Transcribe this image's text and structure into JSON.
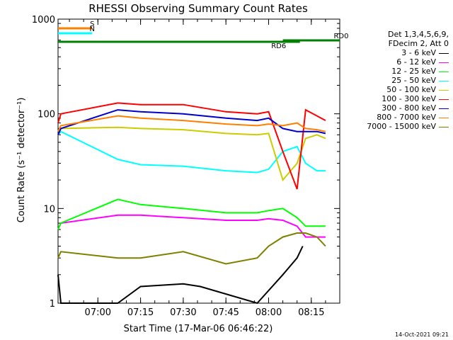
{
  "chart_data": {
    "type": "line",
    "title": "RHESSI Observing Summary Count Rates",
    "xlabel": "Start Time (17-Mar-06 06:46:22)",
    "ylabel": "Count Rate (s⁻¹ detector⁻¹)",
    "yscale": "log",
    "ylim": [
      1,
      1000
    ],
    "y_ticks": [
      "1",
      "10",
      "100",
      "1000"
    ],
    "xlim": [
      "06:46",
      "08:25"
    ],
    "x_ticks": [
      "07:00",
      "07:15",
      "07:30",
      "07:45",
      "08:00",
      "08:15"
    ],
    "legend_header": [
      "Det 1,3,4,5,6,9,",
      "FDecim 2, Att 0"
    ],
    "legend_position": "right",
    "series": [
      {
        "name": "3 - 6 keV",
        "color": "#000000",
        "x": [
          "06:46",
          "06:47",
          "07:07",
          "07:15",
          "07:30",
          "07:36",
          "07:56",
          "08:05",
          "08:10",
          "08:12"
        ],
        "y": [
          2,
          1,
          1,
          1.5,
          1.6,
          1.5,
          1,
          2,
          3,
          4
        ]
      },
      {
        "name": "6 - 12 keV",
        "color": "#ff00ff",
        "x": [
          "06:46",
          "06:47",
          "07:07",
          "07:15",
          "07:30",
          "07:45",
          "07:56",
          "08:00",
          "08:05",
          "08:10",
          "08:13",
          "08:17",
          "08:20"
        ],
        "y": [
          6,
          7,
          8.5,
          8.5,
          8.0,
          7.5,
          7.5,
          7.8,
          7.5,
          6.5,
          5,
          5,
          5
        ]
      },
      {
        "name": "12 - 25 keV",
        "color": "#00ff00",
        "x": [
          "06:46",
          "06:47",
          "07:07",
          "07:15",
          "07:30",
          "07:45",
          "07:56",
          "08:00",
          "08:05",
          "08:10",
          "08:13",
          "08:17",
          "08:20"
        ],
        "y": [
          6,
          7,
          12.5,
          11,
          10,
          9,
          9,
          9.5,
          10,
          8,
          6.5,
          6.5,
          6.5
        ]
      },
      {
        "name": "25 - 50 keV",
        "color": "#00ffff",
        "x": [
          "06:46",
          "06:47",
          "07:07",
          "07:15",
          "07:30",
          "07:45",
          "07:56",
          "08:00",
          "08:05",
          "08:10",
          "08:13",
          "08:17",
          "08:20"
        ],
        "y": [
          60,
          65,
          33,
          29,
          28,
          25,
          24,
          26,
          40,
          45,
          30,
          25,
          25
        ]
      },
      {
        "name": "50 - 100 keV",
        "color": "#cccc00",
        "x": [
          "06:46",
          "06:47",
          "07:07",
          "07:15",
          "07:30",
          "07:45",
          "07:56",
          "08:00",
          "08:05",
          "08:10",
          "08:13",
          "08:17",
          "08:20"
        ],
        "y": [
          60,
          70,
          72,
          70,
          68,
          62,
          60,
          62,
          20,
          30,
          55,
          60,
          55
        ]
      },
      {
        "name": "100 - 300 keV",
        "color": "#ff0000",
        "x": [
          "06:46",
          "06:47",
          "07:07",
          "07:15",
          "07:30",
          "07:45",
          "07:56",
          "08:00",
          "08:05",
          "08:10",
          "08:13",
          "08:17",
          "08:20"
        ],
        "y": [
          80,
          100,
          130,
          125,
          125,
          105,
          100,
          105,
          40,
          16,
          110,
          95,
          85
        ]
      },
      {
        "name": "300 - 800 keV",
        "color": "#0000cc",
        "x": [
          "06:46",
          "06:47",
          "07:07",
          "07:15",
          "07:30",
          "07:45",
          "07:56",
          "08:00",
          "08:05",
          "08:10",
          "08:13",
          "08:17",
          "08:20"
        ],
        "y": [
          60,
          70,
          110,
          105,
          100,
          90,
          85,
          90,
          70,
          65,
          65,
          65,
          62
        ]
      },
      {
        "name": "800 - 7000 keV",
        "color": "#ff8000",
        "x": [
          "06:46",
          "06:47",
          "07:07",
          "07:15",
          "07:30",
          "07:45",
          "07:56",
          "08:00",
          "08:05",
          "08:10",
          "08:13",
          "08:17",
          "08:20"
        ],
        "y": [
          65,
          75,
          95,
          90,
          85,
          78,
          75,
          78,
          75,
          80,
          70,
          68,
          65
        ]
      },
      {
        "name": "7000 - 15000 keV",
        "color": "#808000",
        "x": [
          "06:46",
          "06:47",
          "07:07",
          "07:15",
          "07:30",
          "07:45",
          "07:56",
          "08:00",
          "08:05",
          "08:10",
          "08:13",
          "08:17",
          "08:20"
        ],
        "y": [
          3,
          3.5,
          3,
          3,
          3.5,
          2.6,
          3,
          4,
          5,
          5.5,
          5.5,
          5,
          4
        ]
      }
    ],
    "flags": [
      {
        "label": "S",
        "color": "#ff8000"
      },
      {
        "label": "N",
        "color": "#00ffff"
      },
      {
        "label": "RD0",
        "color": "#008000"
      },
      {
        "label": "RD6",
        "color": "#008000"
      }
    ]
  },
  "footer": {
    "timestamp": "14-Oct-2021 09:21"
  }
}
